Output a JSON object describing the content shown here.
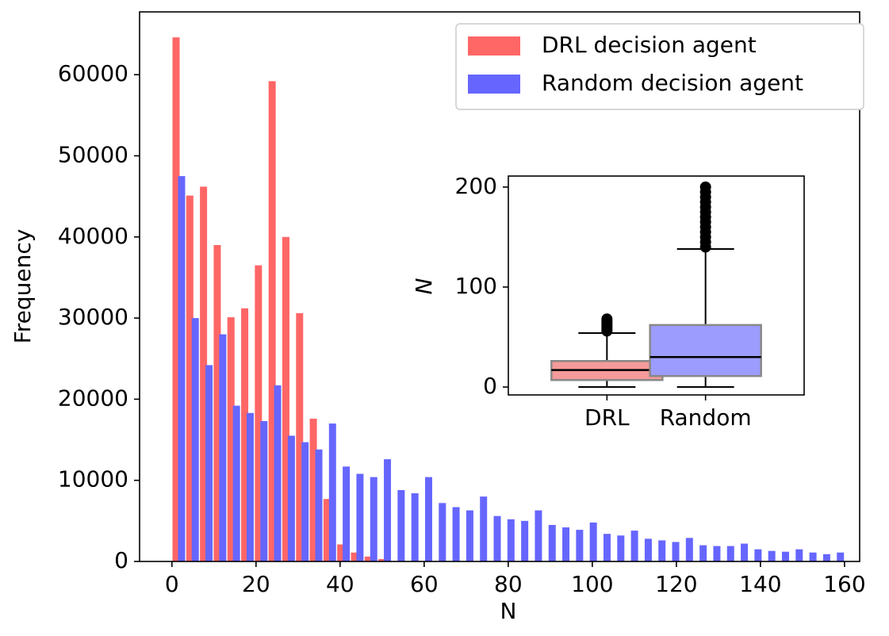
{
  "chart_data": [
    {
      "type": "histogram",
      "x_label": "N",
      "y_label": "Frequency",
      "bins": [
        0,
        3.27,
        6.53,
        9.8,
        13.06,
        16.33,
        19.59,
        22.86,
        26.12,
        29.39,
        32.65,
        35.92,
        39.18,
        42.45,
        45.71,
        48.98,
        52.24,
        55.51,
        58.78,
        62.04,
        65.31,
        68.57,
        71.84,
        75.1,
        78.37,
        81.63,
        84.9,
        88.16,
        91.43,
        94.69,
        97.96,
        101.22,
        104.49,
        107.76,
        111.02,
        114.29,
        117.55,
        120.82,
        124.08,
        127.35,
        130.61,
        133.88,
        137.14,
        140.41,
        143.67,
        146.94,
        150.2,
        153.47,
        156.73,
        160
      ],
      "series": [
        {
          "name": "DRL decision agent",
          "color": "#ff6666",
          "values": [
            64600,
            45100,
            46200,
            39000,
            30100,
            31200,
            36500,
            59200,
            40000,
            30600,
            17600,
            7700,
            2100,
            1100,
            600,
            300,
            0,
            0,
            0,
            0,
            0,
            0,
            0,
            0,
            0,
            0,
            0,
            0,
            0,
            0,
            0,
            0,
            0,
            0,
            0,
            0,
            0,
            0,
            0,
            0,
            0,
            0,
            0,
            0,
            0,
            0,
            0,
            0,
            0
          ]
        },
        {
          "name": "Random decision agent",
          "color": "#6666ff",
          "values": [
            47500,
            30000,
            24200,
            28000,
            19200,
            18300,
            17300,
            21700,
            15500,
            14700,
            13800,
            17000,
            11700,
            10800,
            10400,
            12600,
            8800,
            8400,
            10400,
            7200,
            6700,
            6300,
            8000,
            5600,
            5200,
            5000,
            6300,
            4500,
            4200,
            3900,
            4800,
            3400,
            3200,
            3800,
            2800,
            2600,
            2400,
            2900,
            2000,
            1900,
            1900,
            2200,
            1500,
            1300,
            1200,
            1500,
            1100,
            900,
            1100
          ]
        }
      ],
      "xlim": [
        -7.7,
        163.6
      ],
      "xticks": [
        0,
        20,
        40,
        60,
        80,
        100,
        120,
        140,
        160
      ],
      "ylim": [
        0,
        67740
      ],
      "yticks": [
        0,
        10000,
        20000,
        30000,
        40000,
        50000,
        60000
      ],
      "legend": "upper right"
    },
    {
      "type": "box",
      "y_label": "N",
      "categories": [
        "DRL",
        "Random"
      ],
      "boxes": [
        {
          "whislo": 0,
          "q1": 7,
          "med": 17,
          "q3": 26,
          "whishi": 54,
          "fliers": [
            56,
            58,
            60,
            62,
            64,
            66,
            68
          ],
          "color": "#f49a9a"
        },
        {
          "whislo": 0,
          "q1": 11,
          "med": 30,
          "q3": 62,
          "whishi": 138,
          "fliers": [
            140,
            145,
            150,
            155,
            160,
            165,
            170,
            175,
            180,
            185,
            190,
            195,
            200
          ],
          "color": "#9c9cff"
        }
      ],
      "ylim": [
        -7.9,
        211
      ],
      "yticks": [
        0,
        100,
        200
      ]
    }
  ]
}
